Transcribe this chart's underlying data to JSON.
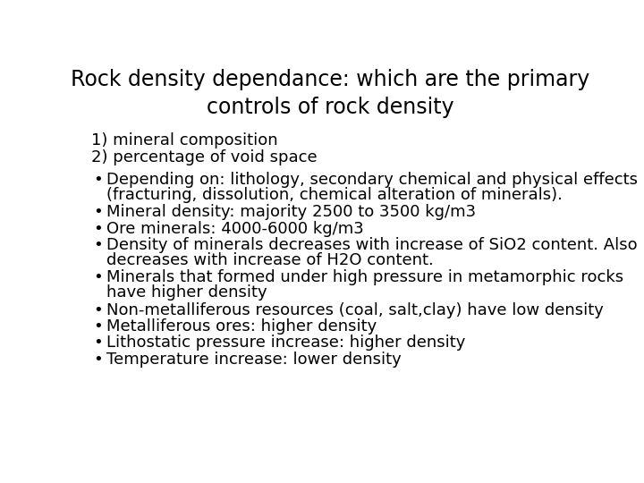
{
  "title_line1": "Rock density dependance: which are the primary",
  "title_line2": "controls of rock density",
  "title_fontsize": 17,
  "title_fontweight": "normal",
  "background_color": "#ffffff",
  "text_color": "#000000",
  "numbered_items": [
    "1) mineral composition",
    "2) percentage of void space"
  ],
  "numbered_fontsize": 13,
  "bullet_items": [
    [
      "Depending on: lithology, secondary chemical and physical effects",
      "(fracturing, dissolution, chemical alteration of minerals)."
    ],
    [
      "Mineral density: majority 2500 to 3500 kg/m3"
    ],
    [
      "Ore minerals: 4000-6000 kg/m3"
    ],
    [
      "Density of minerals decreases with increase of SiO2 content. Also",
      "decreases with increase of H2O content."
    ],
    [
      "Minerals that formed under high pressure in metamorphic rocks",
      "have higher density"
    ],
    [
      "Non-metalliferous resources (coal, salt,clay) have low density"
    ],
    [
      "Metalliferous ores: higher density"
    ],
    [
      "Lithostatic pressure increase: higher density"
    ],
    [
      "Temperature increase: lower density"
    ]
  ],
  "bullet_fontsize": 13,
  "bullet_char": "•",
  "fig_width": 7.2,
  "fig_height": 5.4,
  "dpi": 100
}
